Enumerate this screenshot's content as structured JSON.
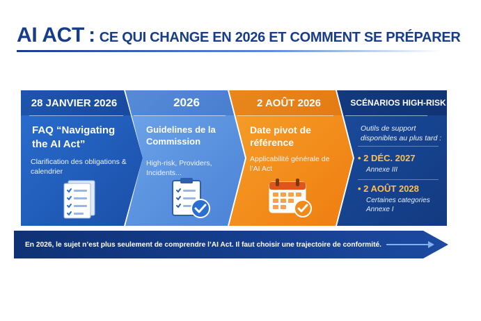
{
  "title": {
    "main": "AI ACT",
    "separator": ":",
    "sub": "CE QUI CHANGE EN 2026 ET COMMENT SE PRÉPARER"
  },
  "panels": [
    {
      "date": "28 JANVIER 2026",
      "title": "FAQ “Navigating the AI Act”",
      "description": "Clarification des obligations & calendrier",
      "icon": "document-list-icon",
      "color": "#1f5bb8"
    },
    {
      "date": "2026",
      "title": "Guidelines de la Commission",
      "description": "High-risk, Providers, Incidents...",
      "icon": "clipboard-check-icon",
      "color": "#5a90df"
    },
    {
      "date": "2 AOÛT 2026",
      "title": "Date pivot de référence",
      "description": "Applicabilité générale de l’AI Act",
      "icon": "calendar-check-icon",
      "color": "#f28c1a"
    },
    {
      "date": "SCÉNARIOS HIGH-RISK",
      "intro": "Outils de support disponibles au plus tard :",
      "deadlines": [
        {
          "date": "• 2 DÉC. 2027",
          "note": "Annexe III"
        },
        {
          "date": "• 2 AOÛT 2028",
          "note": "Certaines categories Annexe I"
        }
      ],
      "color": "#15418a"
    }
  ],
  "banner": {
    "text": "En 2026, le sujet n’est plus seulement de comprendre l’AI Act. Il faut choisir une trajectoire de conformité."
  },
  "colors": {
    "title": "#173d8a",
    "accent_deadline": "#ffc04a",
    "banner": "#173f90"
  }
}
